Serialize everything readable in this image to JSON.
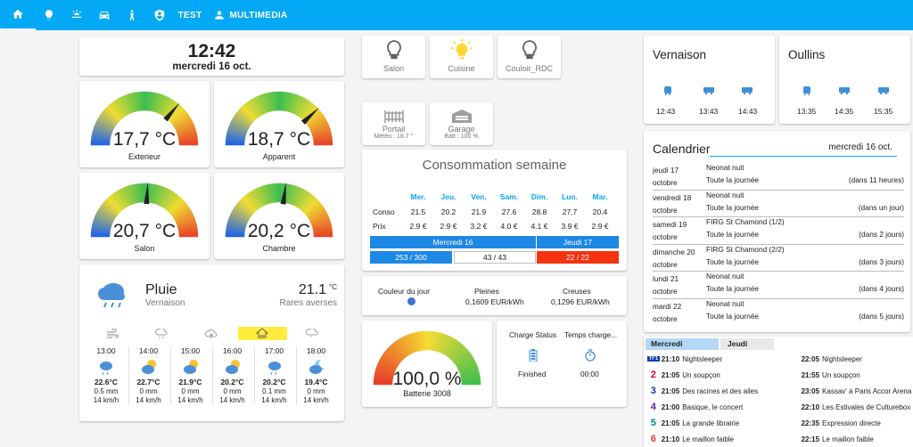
{
  "nav": {
    "test": "TEST",
    "multimedia": "MULTIMEDIA"
  },
  "clock": {
    "time": "12:42",
    "date": "mercredi 16 oct."
  },
  "gauges": [
    {
      "value_text": "17,7 °C",
      "label": "Exterieur",
      "fraction": 0.72
    },
    {
      "value_text": "18,7 °C",
      "label": "Apparent",
      "fraction": 0.76
    },
    {
      "value_text": "20,7 °C",
      "label": "Salon",
      "fraction": 0.52
    },
    {
      "value_text": "20,2 °C",
      "label": "Chambre",
      "fraction": 0.54
    }
  ],
  "lights": [
    {
      "label": "Salon",
      "on": false
    },
    {
      "label": "Cuisine",
      "on": true
    },
    {
      "label": "Couloir_RDC",
      "on": false
    }
  ],
  "covers": [
    {
      "label": "Portail",
      "sub": "Météo : 18.7 °"
    },
    {
      "label": "Garage",
      "sub": "Batt : 100 %"
    }
  ],
  "conso": {
    "title": "Consommation semaine",
    "row_conso": "Conso",
    "row_prix": "Prix",
    "days": [
      "Mer.",
      "Jeu.",
      "Ven.",
      "Sam.",
      "Dim.",
      "Lun.",
      "Mar."
    ],
    "conso": [
      "21.5",
      "20.2",
      "21.9",
      "27.6",
      "28.8",
      "27.7",
      "20.4"
    ],
    "prix": [
      "2.9 €",
      "2.9 €",
      "3.2 €",
      "4.0 €",
      "4.1 €",
      "3.9 €",
      "2.9 €"
    ],
    "day1": "Mercredi 16",
    "day2": "Jeudi 17",
    "c1": "253 / 300",
    "c2": "43 / 43",
    "c3": "22 / 22"
  },
  "tempo": {
    "couleur_label": "Couleur du jour",
    "pleines_label": "Pleines",
    "pleines_value": "0,1609 EUR/kWh",
    "creuses_label": "Creuses",
    "creuses_value": "0,1296 EUR/kWh"
  },
  "battery": {
    "value_text": "100,0 %",
    "label": "Batterie 3008",
    "fraction": 1.0
  },
  "charge": {
    "status_label": "Charge Status",
    "status_value": "Finished",
    "time_label": "Temps charge...",
    "time_value": "00:00"
  },
  "weather": {
    "condition": "Pluie",
    "location": "Vernaison",
    "temp": "21.1",
    "unit": "°C",
    "condition2": "Rares averses",
    "hours": [
      {
        "time": "13:00",
        "temp": "22.6°C",
        "rain": "0.5 mm",
        "wind": "14 km/h",
        "icon": "rain-icon"
      },
      {
        "time": "14:00",
        "temp": "22.7°C",
        "rain": "0 mm",
        "wind": "14 km/h",
        "icon": "partly-cloudy-icon"
      },
      {
        "time": "15:00",
        "temp": "21.9°C",
        "rain": "0 mm",
        "wind": "14 km/h",
        "icon": "partly-cloudy-icon"
      },
      {
        "time": "16:00",
        "temp": "20.2°C",
        "rain": "0 mm",
        "wind": "14 km/h",
        "icon": "partly-cloudy-icon"
      },
      {
        "time": "17:00",
        "temp": "20.2°C",
        "rain": "0.1 mm",
        "wind": "14 km/h",
        "icon": "rain-icon"
      },
      {
        "time": "18:00",
        "temp": "19.4°C",
        "rain": "0 mm",
        "wind": "14 km/h",
        "icon": "night-cloudy-icon"
      }
    ]
  },
  "transit": [
    {
      "name": "Vernaison",
      "times": [
        "12:43",
        "13:43",
        "14:43"
      ]
    },
    {
      "name": "Oullins",
      "times": [
        "13:35",
        "14:35",
        "15:35"
      ]
    }
  ],
  "calendar": {
    "title": "Calendrier",
    "date": "mercredi 16 oct.",
    "events": [
      {
        "day": "jeudi 17",
        "month": "octobre",
        "name": "Neonat nuit",
        "when": "Toute la journée",
        "rel": "(dans 11 heures)"
      },
      {
        "day": "vendredi 18",
        "month": "octobre",
        "name": "Neonat nuit",
        "when": "Toute la journée",
        "rel": "(dans un jour)"
      },
      {
        "day": "samedi 19",
        "month": "octobre",
        "name": "FIRG St Chamond (1/2)",
        "when": "Toute la journée",
        "rel": "(dans 2 jours)"
      },
      {
        "day": "dimanche 20",
        "month": "octobre",
        "name": "FIRG St Chamond (2/2)",
        "when": "Toute la journée",
        "rel": "(dans 3 jours)"
      },
      {
        "day": "lundi 21",
        "month": "octobre",
        "name": "Neonat nuit",
        "when": "Toute la journée",
        "rel": "(dans 4 jours)"
      },
      {
        "day": "mardi 22",
        "month": "octobre",
        "name": "Neonat nuit",
        "when": "Toute la journée",
        "rel": "(dans 5 jours)"
      }
    ]
  },
  "tv": {
    "tab1": "Mercredi",
    "tab2": "Jeudi",
    "rows": [
      {
        "logo": "TF1",
        "t1": "21:10",
        "p1": "Nightsleeper",
        "t2": "22:05",
        "p2": "Nightsleeper",
        "color": "#0b3fa8"
      },
      {
        "logo": "2",
        "t1": "21:05",
        "p1": "Un soupçon",
        "t2": "21:55",
        "p2": "Un soupçon",
        "color": "#e2001a"
      },
      {
        "logo": "3",
        "t1": "21:05",
        "p1": "Des racines et des ailes",
        "t2": "23:05",
        "p2": "Kassav' à Paris Accor Arena",
        "color": "#0a3d91"
      },
      {
        "logo": "4",
        "t1": "21:00",
        "p1": "Basique, le concert",
        "t2": "22:10",
        "p2": "Les Estivales de Culturebox",
        "color": "#6a1b9a"
      },
      {
        "logo": "5",
        "t1": "21:05",
        "p1": "La grande librairie",
        "t2": "22:35",
        "p2": "Expression directe",
        "color": "#00897b"
      },
      {
        "logo": "6",
        "t1": "21:10",
        "p1": "Le maillon faible",
        "t2": "22:15",
        "p2": "Le maillon faible",
        "color": "#e53935"
      }
    ]
  }
}
